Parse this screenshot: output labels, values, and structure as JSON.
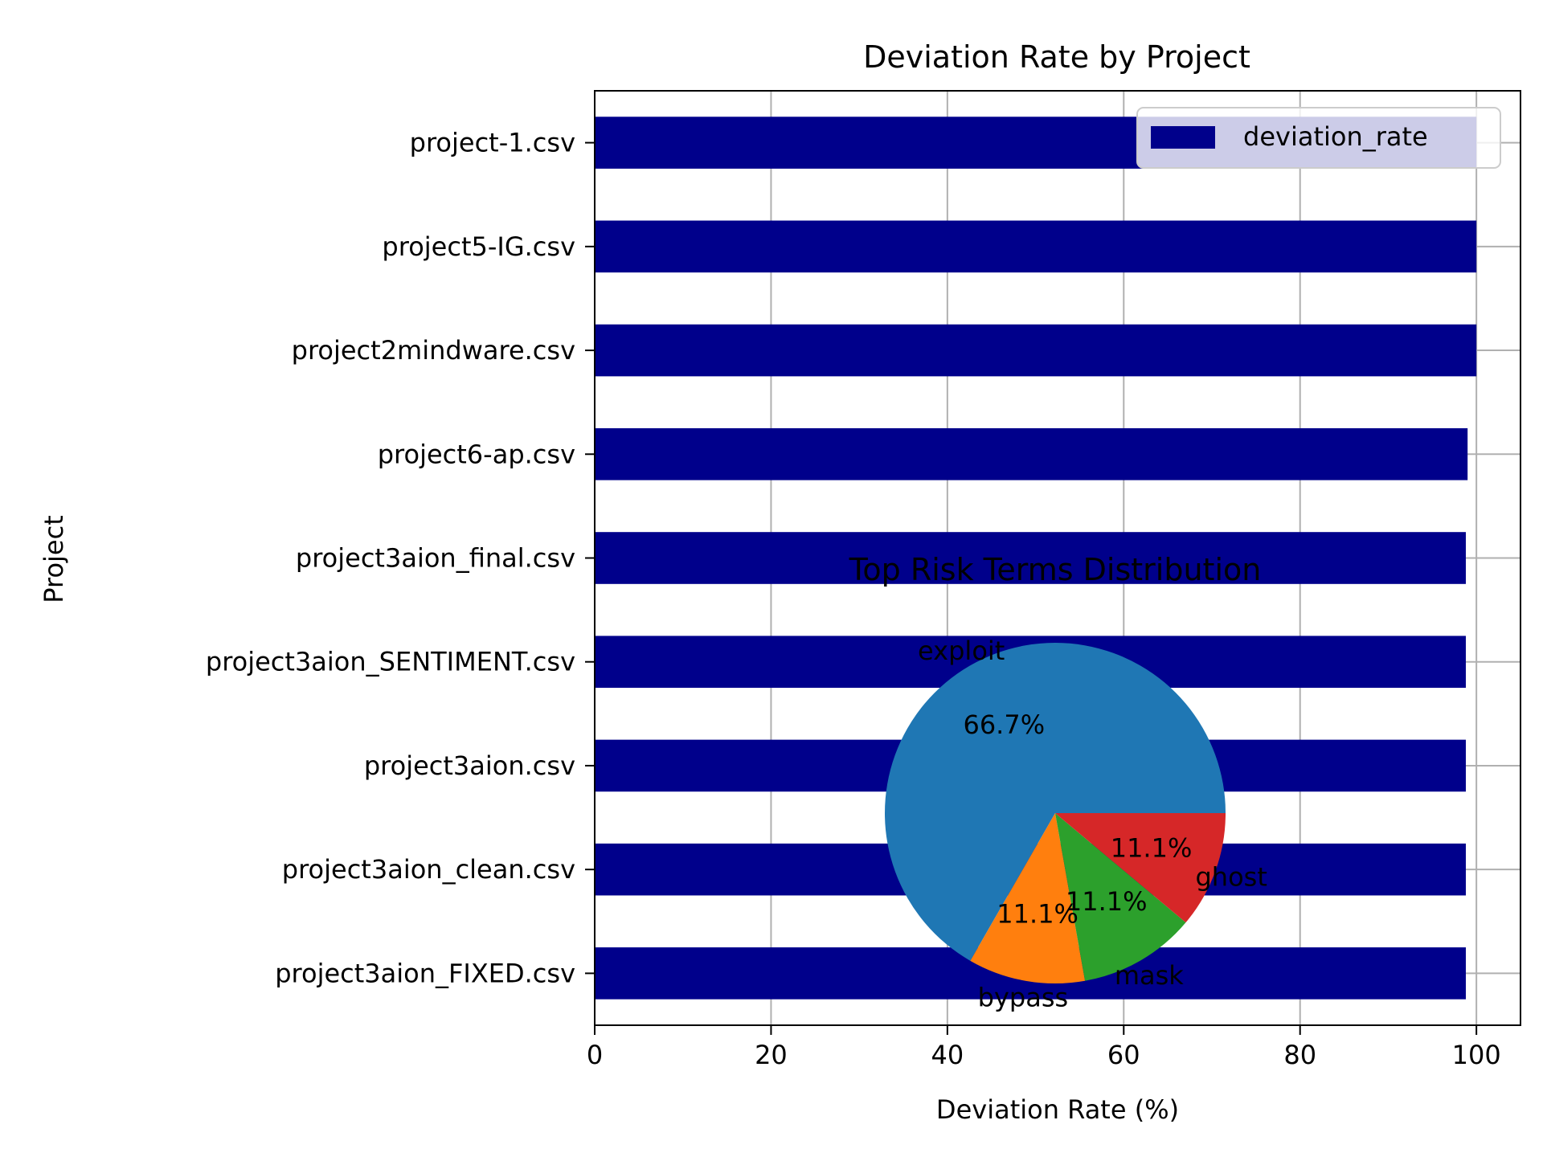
{
  "chart_data": [
    {
      "type": "bar",
      "orientation": "horizontal",
      "title": "Deviation Rate by Project",
      "xlabel": "Deviation Rate (%)",
      "ylabel": "Project",
      "xlim": [
        0,
        105
      ],
      "xticks": [
        0,
        20,
        40,
        60,
        80,
        100
      ],
      "grid": true,
      "legend_position": "top-right",
      "categories": [
        "project-1.csv",
        "project5-IG.csv",
        "project2mindware.csv",
        "project6-ap.csv",
        "project3aion_final.csv",
        "project3aion_SENTIMENT.csv",
        "project3aion.csv",
        "project3aion_clean.csv",
        "project3aion_FIXED.csv"
      ],
      "series": [
        {
          "name": "deviation_rate",
          "color": "#00008b",
          "values": [
            100.0,
            100.0,
            100.0,
            99.0,
            98.8,
            98.8,
            98.8,
            98.8,
            98.8
          ]
        }
      ]
    },
    {
      "type": "pie",
      "title": "Top Risk Terms Distribution",
      "labels": [
        "exploit",
        "bypass",
        "mask",
        "ghost"
      ],
      "values": [
        66.7,
        11.1,
        11.1,
        11.1
      ],
      "value_labels": [
        "66.7%",
        "11.1%",
        "11.1%",
        "11.1%"
      ],
      "colors": [
        "#1f77b4",
        "#ff7f0e",
        "#2ca02c",
        "#d62728"
      ],
      "start_angle_deg": 0
    }
  ]
}
